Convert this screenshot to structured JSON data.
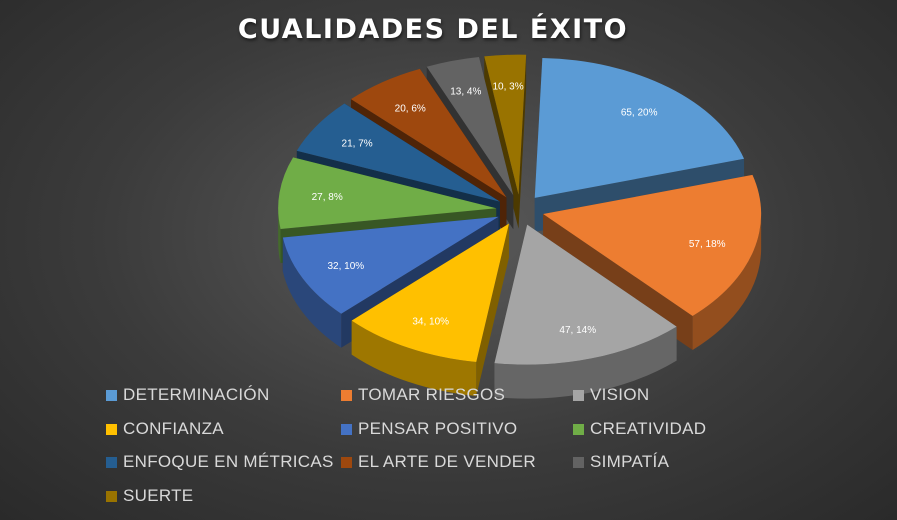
{
  "chart_data": {
    "type": "pie",
    "title": "CUALIDADES DEL ÉXITO",
    "legend_position": "bottom",
    "three_d": true,
    "exploded": true,
    "slices": [
      {
        "name": "DETERMINACIÓN",
        "value": 65,
        "percent_label": "20%",
        "label": "65, 20%",
        "color": "#5b9bd5"
      },
      {
        "name": "TOMAR RIESGOS",
        "value": 57,
        "percent_label": "18%",
        "label": "57, 18%",
        "color": "#ed7d31"
      },
      {
        "name": "VISION",
        "value": 47,
        "percent_label": "14%",
        "label": "47, 14%",
        "color": "#a5a5a5"
      },
      {
        "name": "CONFIANZA",
        "value": 34,
        "percent_label": "10%",
        "label": "34, 10%",
        "color": "#ffc000"
      },
      {
        "name": "PENSAR POSITIVO",
        "value": 32,
        "percent_label": "10%",
        "label": "32, 10%",
        "color": "#4472c4"
      },
      {
        "name": "CREATIVIDAD",
        "value": 27,
        "percent_label": "8%",
        "label": "27, 8%",
        "color": "#70ad47"
      },
      {
        "name": "ENFOQUE EN MÉTRICAS",
        "value": 21,
        "percent_label": "7%",
        "label": "21, 7%",
        "color": "#255e91"
      },
      {
        "name": "EL ARTE DE VENDER",
        "value": 20,
        "percent_label": "6%",
        "label": "20, 6%",
        "color": "#9e480e"
      },
      {
        "name": "SIMPATÍA",
        "value": 13,
        "percent_label": "4%",
        "label": "13, 4%",
        "color": "#636363"
      },
      {
        "name": "SUERTE",
        "value": 10,
        "percent_label": "3%",
        "label": "10, 3%",
        "color": "#997300"
      }
    ]
  }
}
